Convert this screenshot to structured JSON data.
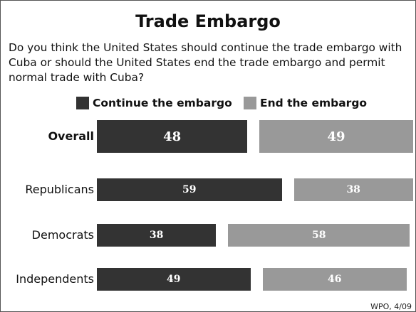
{
  "chart_data": {
    "type": "bar",
    "title": "Trade Embargo",
    "subtitle": "Do you think the United States should continue the trade embargo with Cuba or should the United States end the trade embargo and permit normal trade with Cuba?",
    "categories": [
      "Overall",
      "Republicans",
      "Democrats",
      "Independents"
    ],
    "series": [
      {
        "name": "Continue the embargo",
        "color": "#333333",
        "values": [
          48,
          59,
          38,
          49
        ]
      },
      {
        "name": "End the embargo",
        "color": "#999999",
        "values": [
          49,
          38,
          58,
          46
        ]
      }
    ],
    "xlabel": "",
    "ylabel": "",
    "legend_position": "top",
    "grid": false,
    "source": "WPO, 4/09"
  }
}
